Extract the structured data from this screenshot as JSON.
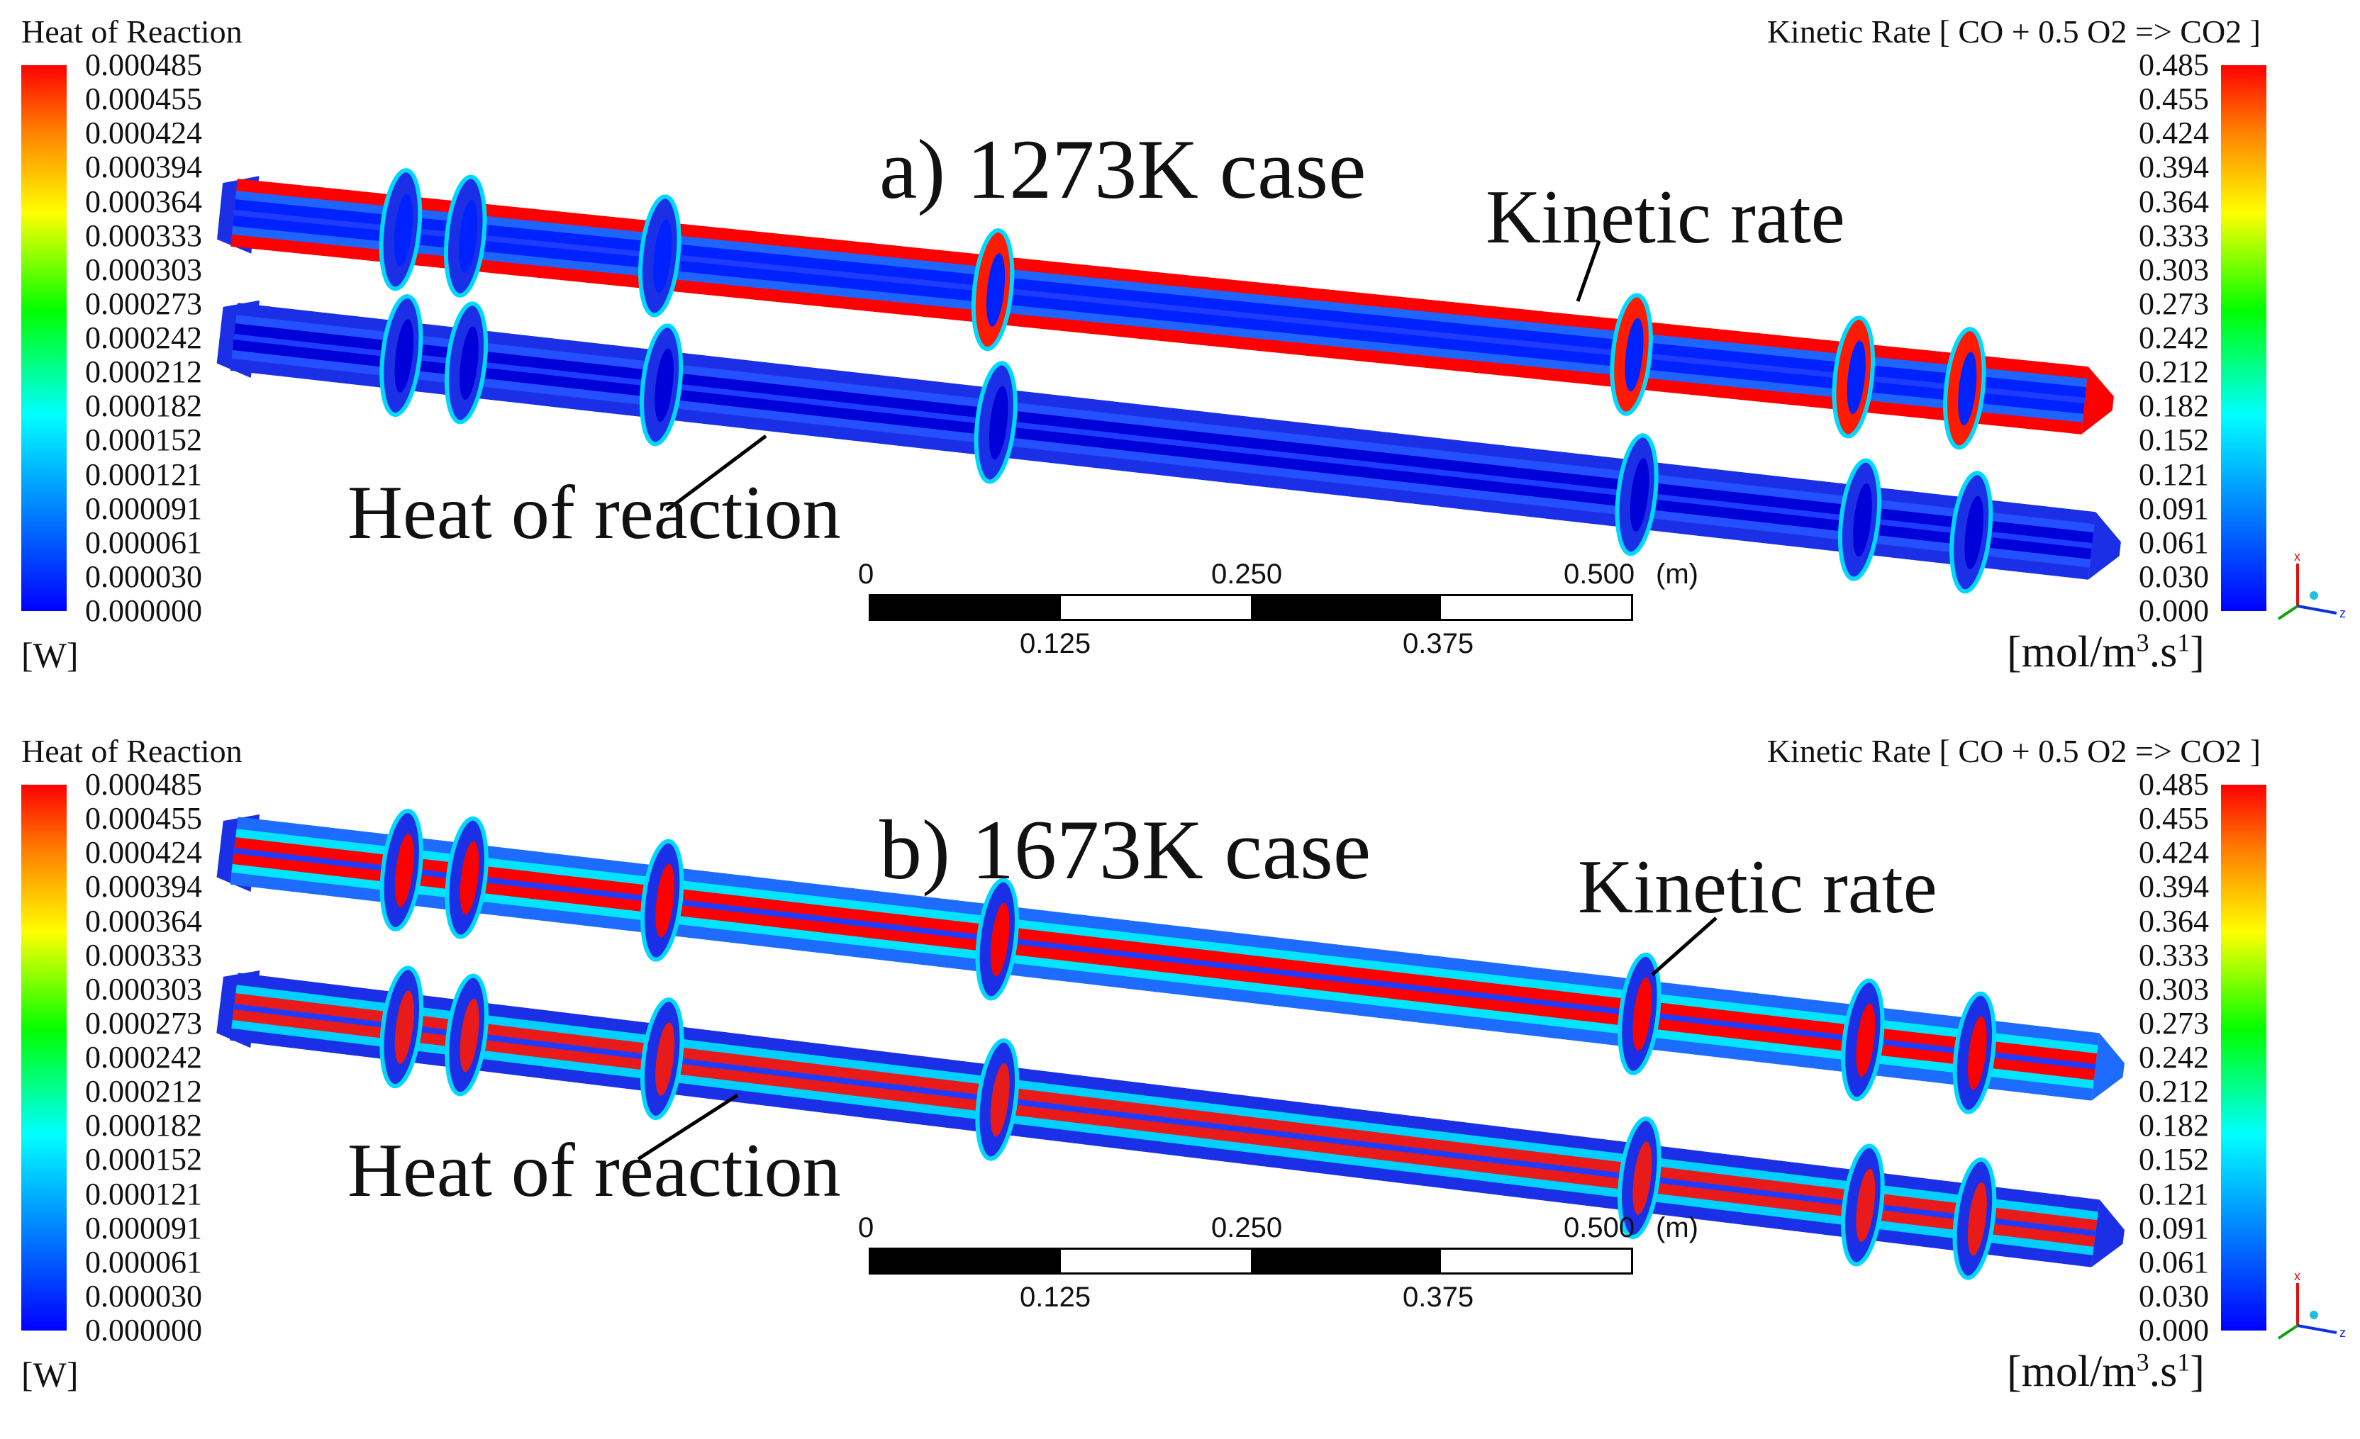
{
  "panels": [
    {
      "case_label": "a) 1273K case",
      "callout_kinetic": "Kinetic rate",
      "callout_heat": "Heat of reaction",
      "left_legend": {
        "title": "Heat of Reaction",
        "unit": "[W]",
        "ticks": [
          "0.000485",
          "0.000455",
          "0.000424",
          "0.000394",
          "0.000364",
          "0.000333",
          "0.000303",
          "0.000273",
          "0.000242",
          "0.000212",
          "0.000182",
          "0.000152",
          "0.000121",
          "0.000091",
          "0.000061",
          "0.000030",
          "0.000000"
        ]
      },
      "right_legend": {
        "title": "Kinetic Rate [ CO + 0.5 O2 => CO2 ]",
        "unit_prefix": "[mol/m",
        "unit_exp1": "3",
        "unit_mid": ".s",
        "unit_exp2": "1",
        "unit_suffix": "]",
        "ticks": [
          "0.485",
          "0.455",
          "0.424",
          "0.394",
          "0.364",
          "0.333",
          "0.303",
          "0.273",
          "0.242",
          "0.212",
          "0.182",
          "0.152",
          "0.121",
          "0.091",
          "0.061",
          "0.030",
          "0.000"
        ]
      },
      "scale_bar": {
        "top_labels": [
          "0",
          "0.250",
          "0.500"
        ],
        "unit": "(m)",
        "bottom_labels": [
          "0.125",
          "0.375"
        ]
      },
      "kinetic_tube": {
        "outer": "#ff0000",
        "core": "#0022ff",
        "mid": "#1e64ff"
      },
      "heat_tube": {
        "outer": "#1a2fe6",
        "core": "#0000d8",
        "mid": "#2450ff"
      }
    },
    {
      "case_label": "b) 1673K case",
      "callout_kinetic": "Kinetic rate",
      "callout_heat": "Heat of reaction",
      "left_legend": {
        "title": "Heat of Reaction",
        "unit": "[W]",
        "ticks": [
          "0.000485",
          "0.000455",
          "0.000424",
          "0.000394",
          "0.000364",
          "0.000333",
          "0.000303",
          "0.000273",
          "0.000242",
          "0.000212",
          "0.000182",
          "0.000152",
          "0.000121",
          "0.000091",
          "0.000061",
          "0.000030",
          "0.000000"
        ]
      },
      "right_legend": {
        "title": "Kinetic Rate [ CO + 0.5 O2 => CO2 ]",
        "unit_prefix": "[mol/m",
        "unit_exp1": "3",
        "unit_mid": ".s",
        "unit_exp2": "1",
        "unit_suffix": "]",
        "ticks": [
          "0.485",
          "0.455",
          "0.424",
          "0.394",
          "0.364",
          "0.333",
          "0.303",
          "0.273",
          "0.242",
          "0.212",
          "0.182",
          "0.152",
          "0.121",
          "0.091",
          "0.061",
          "0.030",
          "0.000"
        ]
      },
      "scale_bar": {
        "top_labels": [
          "0",
          "0.250",
          "0.500"
        ],
        "unit": "(m)",
        "bottom_labels": [
          "0.125",
          "0.375"
        ]
      },
      "kinetic_tube": {
        "outer": "#1e6cff",
        "core": "#ff0000",
        "mid": "#00e5ff"
      },
      "heat_tube": {
        "outer": "#1a2fe6",
        "core": "#e81a1a",
        "mid": "#00d0ff"
      }
    }
  ],
  "triad_axes": [
    "x",
    "y",
    "z"
  ]
}
